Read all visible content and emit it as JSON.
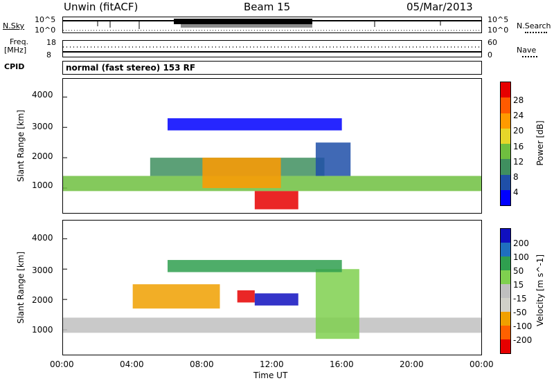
{
  "header": {
    "station": "Unwin (fitACF)",
    "beam": "Beam 15",
    "date": "05/Mar/2013"
  },
  "top_panels": {
    "nsky_label": "N.Sky",
    "nsearch_label": "N.Search",
    "noise_ticks_left": [
      "10^5",
      "10^0"
    ],
    "noise_ticks_right": [
      "10^5",
      "10^0"
    ],
    "freq_label": "Freq.",
    "freq_unit": "[MHz]",
    "freq_ticks": [
      "18",
      "8"
    ],
    "nave_label": "Nave",
    "nave_ticks": [
      "60",
      "0"
    ],
    "cpid_label": "CPID",
    "cpid_text": "normal (fast stereo) 153 RF"
  },
  "x_axis": {
    "label": "Time UT",
    "ticks": [
      "00:00",
      "04:00",
      "08:00",
      "12:00",
      "16:00",
      "20:00",
      "00:00"
    ]
  },
  "colors": {
    "power": [
      "#0000ff",
      "#1f4fa8",
      "#3f8f5f",
      "#6fbf3f",
      "#e6d62a",
      "#ff9a00",
      "#ff5a00",
      "#e60000"
    ],
    "velocity": [
      "#e60000",
      "#ff6000",
      "#f0a000",
      "#d0d0c8",
      "#bfbfbf",
      "#7fd04f",
      "#2f9f4f",
      "#1f6fbf",
      "#1010c0"
    ]
  },
  "chart_data": [
    {
      "type": "heatmap",
      "quantity": "Power",
      "xlabel": "Time UT",
      "ylabel": "Slant Range [km]",
      "xlim": [
        0,
        24
      ],
      "ylim": [
        180,
        4600
      ],
      "yticks": [
        "1000",
        "2000",
        "3000",
        "4000"
      ],
      "colorbar": {
        "label": "Power [dB]",
        "ticks": [
          "4",
          "8",
          "12",
          "16",
          "20",
          "24",
          "28"
        ]
      },
      "bands": [
        {
          "start_hr": 0.0,
          "end_hr": 24.0,
          "range_km": [
            900,
            1400
          ],
          "level": 3
        },
        {
          "start_hr": 5.0,
          "end_hr": 15.0,
          "range_km": [
            1400,
            2000
          ],
          "level": 2
        },
        {
          "start_hr": 8.0,
          "end_hr": 12.5,
          "range_km": [
            1000,
            2000
          ],
          "level": 5
        },
        {
          "start_hr": 11.0,
          "end_hr": 13.5,
          "range_km": [
            300,
            900
          ],
          "level": 7
        },
        {
          "start_hr": 14.5,
          "end_hr": 16.5,
          "range_km": [
            1400,
            2500
          ],
          "level": 1
        },
        {
          "start_hr": 6.0,
          "end_hr": 16.0,
          "range_km": [
            2900,
            3300
          ],
          "level": 0
        }
      ]
    },
    {
      "type": "heatmap",
      "quantity": "Velocity",
      "xlabel": "Time UT",
      "ylabel": "Slant Range [km]",
      "xlim": [
        0,
        24
      ],
      "ylim": [
        180,
        4600
      ],
      "yticks": [
        "1000",
        "2000",
        "3000",
        "4000"
      ],
      "colorbar": {
        "label": "Velocity [m s^-1]",
        "ticks": [
          "200",
          "100",
          "50",
          "15",
          "-15",
          "-50",
          "-100",
          "-200"
        ]
      },
      "bands": [
        {
          "start_hr": 0.0,
          "end_hr": 24.0,
          "range_km": [
            900,
            1400
          ],
          "level": 4
        },
        {
          "start_hr": 4.0,
          "end_hr": 9.0,
          "range_km": [
            1700,
            2500
          ],
          "level": 2
        },
        {
          "start_hr": 10.0,
          "end_hr": 11.0,
          "range_km": [
            1900,
            2300
          ],
          "level": 0
        },
        {
          "start_hr": 11.0,
          "end_hr": 13.5,
          "range_km": [
            1800,
            2200
          ],
          "level": 8
        },
        {
          "start_hr": 14.5,
          "end_hr": 17.0,
          "range_km": [
            700,
            3000
          ],
          "level": 5
        },
        {
          "start_hr": 6.0,
          "end_hr": 16.0,
          "range_km": [
            2900,
            3300
          ],
          "level": 6
        }
      ]
    }
  ]
}
